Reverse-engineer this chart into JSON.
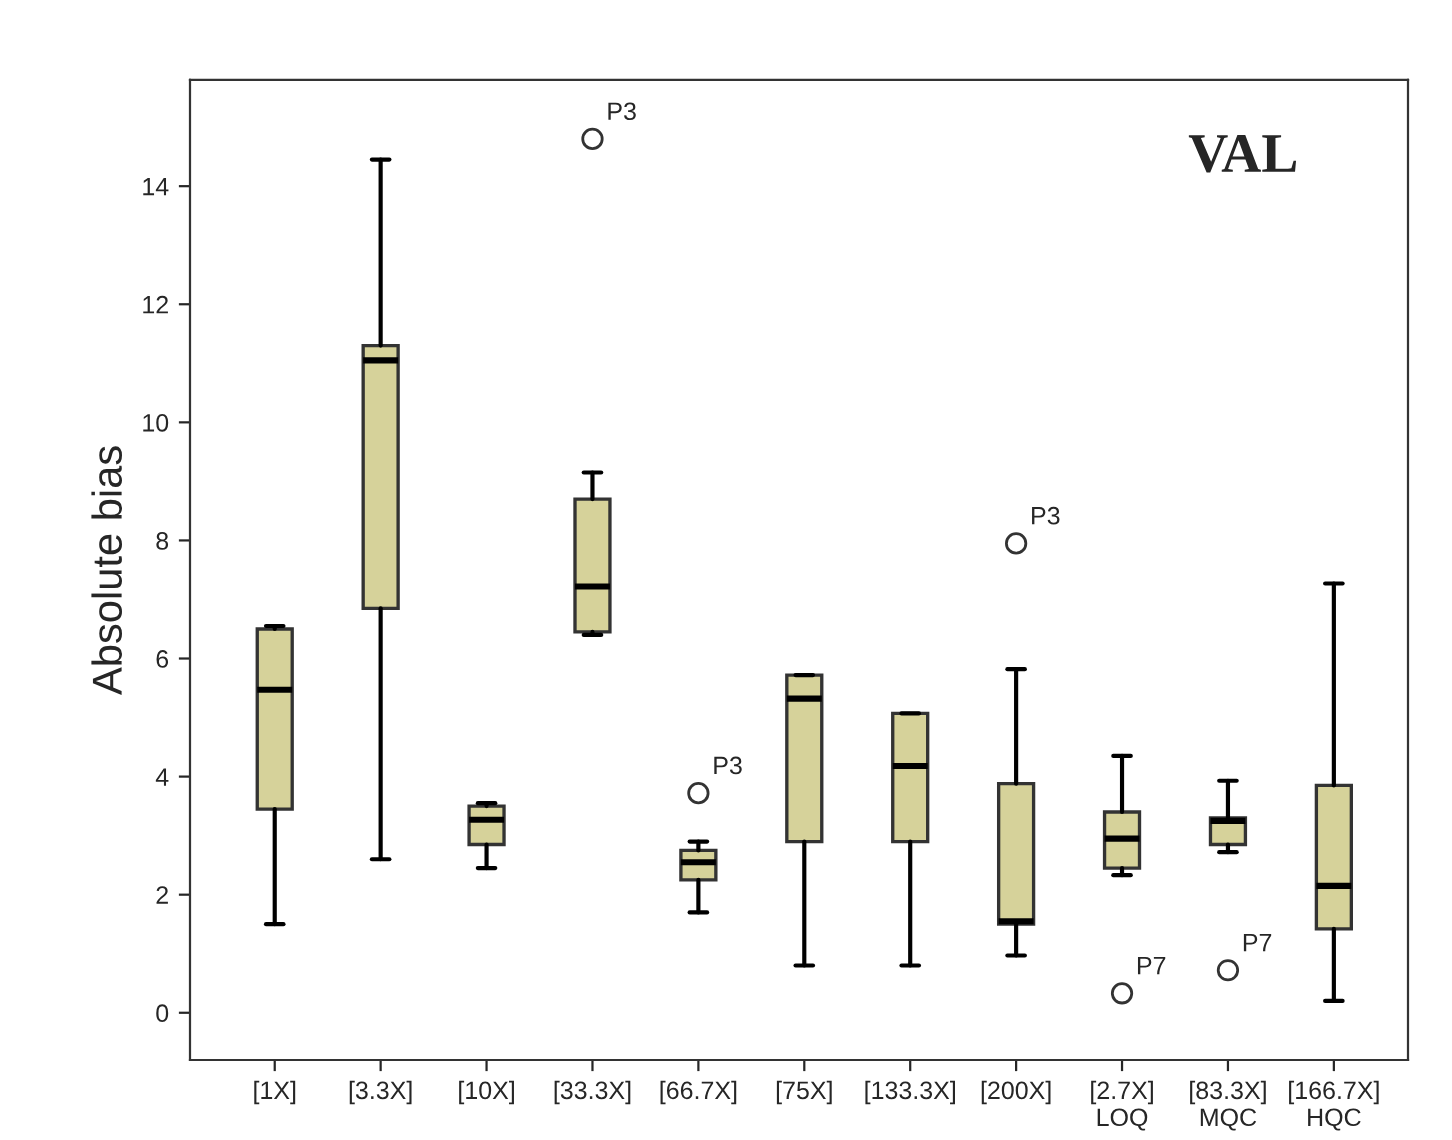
{
  "chart_data": {
    "type": "box",
    "ylabel": "Absolute bias",
    "categories": [
      "[1X]",
      "[3.3X]",
      "[10X]",
      "[33.3X]",
      "[66.7X]",
      "[75X]",
      "[133.3X]",
      "[200X]",
      "[2.7X]\nLOQ",
      "[83.3X]\nMQC",
      "[166.7X]\nHQC"
    ],
    "boxes": [
      {
        "low": 1.5,
        "q1": 3.45,
        "median": 5.47,
        "q3": 6.5,
        "high": 6.55
      },
      {
        "low": 2.6,
        "q1": 6.85,
        "median": 11.05,
        "q3": 11.3,
        "high": 14.45
      },
      {
        "low": 2.45,
        "q1": 2.85,
        "median": 3.27,
        "q3": 3.5,
        "high": 3.55
      },
      {
        "low": 6.4,
        "q1": 6.45,
        "median": 7.22,
        "q3": 8.7,
        "high": 9.15,
        "outliers": [
          14.8
        ]
      },
      {
        "low": 1.7,
        "q1": 2.25,
        "median": 2.55,
        "q3": 2.75,
        "high": 2.9,
        "outliers": [
          3.72
        ]
      },
      {
        "low": 0.8,
        "q1": 2.9,
        "median": 5.32,
        "q3": 5.72,
        "high": 5.72
      },
      {
        "low": 0.8,
        "q1": 2.9,
        "median": 4.18,
        "q3": 5.07,
        "high": 5.07
      },
      {
        "low": 0.97,
        "q1": 1.5,
        "median": 1.55,
        "q3": 3.88,
        "high": 5.82,
        "outliers": [
          7.95
        ]
      },
      {
        "low": 2.33,
        "q1": 2.45,
        "median": 2.95,
        "q3": 3.4,
        "high": 4.35,
        "outliers": [
          0.33
        ]
      },
      {
        "low": 2.72,
        "q1": 2.85,
        "median": 3.25,
        "q3": 3.3,
        "high": 3.93,
        "outliers": [
          0.72
        ]
      },
      {
        "low": 0.2,
        "q1": 1.42,
        "median": 2.15,
        "q3": 3.85,
        "high": 7.27
      }
    ],
    "color": "#d6d29a",
    "ylim": [
      -0.8,
      15.8
    ],
    "yticks": [
      0,
      2,
      4,
      6,
      8,
      10,
      12,
      14
    ],
    "grid": false,
    "legend": false,
    "annotations": [
      "VAL",
      "P3",
      "P3",
      "P3",
      "P7",
      "P7"
    ]
  }
}
